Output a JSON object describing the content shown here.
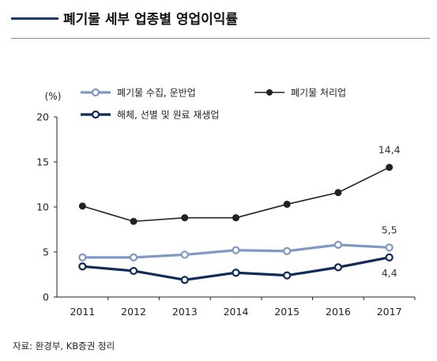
{
  "header": {
    "title": "폐기물 세부 업종별 영업이익률"
  },
  "source": "자료: 환경부, KB증권 정리",
  "chart_data": {
    "type": "line",
    "title": "폐기물 세부 업종별 영업이익률",
    "ylabel": "(%)",
    "xlabel": "",
    "ylim": [
      0,
      20
    ],
    "yticks": [
      0,
      5,
      10,
      15,
      20
    ],
    "x": [
      "2011",
      "2012",
      "2013",
      "2014",
      "2015",
      "2016",
      "2017"
    ],
    "grid": false,
    "legend_position": "top",
    "series": [
      {
        "name": "폐기물 수집, 운반업",
        "values": [
          4.4,
          4.4,
          4.7,
          5.2,
          5.1,
          5.8,
          5.5
        ],
        "color": "#7f98c4",
        "marker": "open-circle",
        "end_label": "5,5"
      },
      {
        "name": "폐기물 처리업",
        "values": [
          10.1,
          8.4,
          8.8,
          8.8,
          10.3,
          11.6,
          14.4
        ],
        "color": "#222222",
        "marker": "filled-circle",
        "end_label": "14,4"
      },
      {
        "name": "해체, 선별 및 원료 재생업",
        "values": [
          3.4,
          2.9,
          1.9,
          2.7,
          2.4,
          3.3,
          4.4
        ],
        "color": "#0f2b57",
        "marker": "open-circle",
        "end_label": "4,4"
      }
    ]
  }
}
